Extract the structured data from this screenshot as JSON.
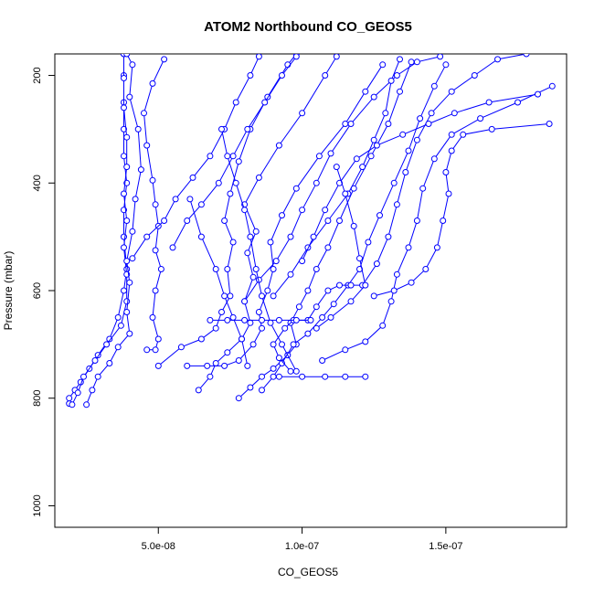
{
  "chart_data": {
    "type": "line",
    "title": "ATOM2 Northbound CO_GEOS5",
    "xlabel": "CO_GEOS5",
    "ylabel": "Pressure (mbar)",
    "xlim": [
      1.4e-08,
      1.92e-07
    ],
    "ylim": [
      1040,
      160
    ],
    "y_inverted": true,
    "grid": false,
    "legend": "none",
    "marker": "open-circle",
    "color": "#0000ff",
    "x_ticks": [
      {
        "value": 5e-08,
        "label": "5.0e-08"
      },
      {
        "value": 1e-07,
        "label": "1.0e-07"
      },
      {
        "value": 1.5e-07,
        "label": "1.5e-07"
      }
    ],
    "y_ticks": [
      {
        "value": 200,
        "label": "200"
      },
      {
        "value": 400,
        "label": "400"
      },
      {
        "value": 600,
        "label": "600"
      },
      {
        "value": 800,
        "label": "800"
      },
      {
        "value": 1000,
        "label": "1000"
      }
    ],
    "series": [
      {
        "values": [
          [
            1.9e-08,
            810
          ],
          [
            1.9e-08,
            800
          ],
          [
            2.1e-08,
            785
          ],
          [
            2.3e-08,
            770
          ],
          [
            2.6e-08,
            745
          ],
          [
            2.9e-08,
            720
          ],
          [
            3.3e-08,
            690
          ],
          [
            3.6e-08,
            650
          ],
          [
            3.8e-08,
            600
          ],
          [
            3.9e-08,
            560
          ],
          [
            3.8e-08,
            500
          ],
          [
            3.8e-08,
            450
          ],
          [
            3.9e-08,
            400
          ],
          [
            3.8e-08,
            350
          ],
          [
            3.8e-08,
            300
          ],
          [
            3.8e-08,
            250
          ],
          [
            3.8e-08,
            200
          ],
          [
            3.8e-08,
            160
          ]
        ]
      },
      {
        "values": [
          [
            2e-08,
            812
          ],
          [
            2.2e-08,
            790
          ],
          [
            2.4e-08,
            760
          ],
          [
            2.8e-08,
            730
          ],
          [
            3.2e-08,
            700
          ],
          [
            3.7e-08,
            665
          ],
          [
            3.9e-08,
            620
          ],
          [
            3.9e-08,
            570
          ],
          [
            3.8e-08,
            520
          ],
          [
            3.9e-08,
            470
          ],
          [
            3.8e-08,
            420
          ],
          [
            3.9e-08,
            370
          ],
          [
            3.9e-08,
            315
          ],
          [
            3.8e-08,
            260
          ],
          [
            3.8e-08,
            205
          ],
          [
            3.8e-08,
            160
          ]
        ]
      },
      {
        "values": [
          [
            2.5e-08,
            812
          ],
          [
            2.7e-08,
            785
          ],
          [
            2.9e-08,
            760
          ],
          [
            3.3e-08,
            735
          ],
          [
            3.6e-08,
            705
          ],
          [
            4e-08,
            680
          ],
          [
            3.9e-08,
            640
          ],
          [
            4e-08,
            585
          ],
          [
            3.9e-08,
            545
          ],
          [
            4.1e-08,
            490
          ],
          [
            4.2e-08,
            430
          ],
          [
            4.4e-08,
            375
          ],
          [
            4.3e-08,
            300
          ],
          [
            4e-08,
            240
          ],
          [
            4.1e-08,
            180
          ],
          [
            3.9e-08,
            160
          ]
        ]
      },
      {
        "values": [
          [
            4.6e-08,
            710
          ],
          [
            4.9e-08,
            710
          ],
          [
            5e-08,
            690
          ],
          [
            4.8e-08,
            650
          ],
          [
            4.9e-08,
            600
          ],
          [
            5.1e-08,
            560
          ],
          [
            4.9e-08,
            525
          ],
          [
            5e-08,
            480
          ],
          [
            4.9e-08,
            440
          ],
          [
            4.8e-08,
            395
          ],
          [
            4.6e-08,
            330
          ],
          [
            4.5e-08,
            270
          ],
          [
            4.8e-08,
            215
          ],
          [
            5.2e-08,
            170
          ]
        ]
      },
      {
        "values": [
          [
            5e-08,
            740
          ],
          [
            5.8e-08,
            705
          ],
          [
            6.5e-08,
            690
          ],
          [
            7e-08,
            670
          ],
          [
            7.2e-08,
            640
          ],
          [
            7.5e-08,
            610
          ],
          [
            7.4e-08,
            560
          ],
          [
            7.6e-08,
            510
          ],
          [
            7.3e-08,
            470
          ],
          [
            7.5e-08,
            420
          ],
          [
            7.8e-08,
            360
          ],
          [
            8.2e-08,
            300
          ],
          [
            8.8e-08,
            240
          ],
          [
            9.5e-08,
            180
          ],
          [
            9.8e-08,
            160
          ]
        ]
      },
      {
        "values": [
          [
            6.4e-08,
            785
          ],
          [
            6.8e-08,
            760
          ],
          [
            7e-08,
            735
          ],
          [
            7.4e-08,
            715
          ],
          [
            7.9e-08,
            690
          ],
          [
            8.2e-08,
            660
          ],
          [
            8e-08,
            620
          ],
          [
            8.3e-08,
            575
          ],
          [
            8.1e-08,
            530
          ],
          [
            8.4e-08,
            490
          ],
          [
            8e-08,
            440
          ],
          [
            8.5e-08,
            390
          ],
          [
            9.2e-08,
            330
          ],
          [
            1e-07,
            270
          ],
          [
            1.08e-07,
            200
          ],
          [
            1.12e-07,
            165
          ]
        ]
      },
      {
        "values": [
          [
            6e-08,
            740
          ],
          [
            6.7e-08,
            740
          ],
          [
            7.3e-08,
            740
          ],
          [
            7.8e-08,
            730
          ],
          [
            8.3e-08,
            700
          ],
          [
            8.6e-08,
            670
          ],
          [
            8.5e-08,
            640
          ],
          [
            8.8e-08,
            600
          ],
          [
            9e-08,
            560
          ],
          [
            8.9e-08,
            510
          ],
          [
            9.3e-08,
            460
          ],
          [
            9.8e-08,
            410
          ],
          [
            1.06e-07,
            350
          ],
          [
            1.15e-07,
            290
          ],
          [
            1.22e-07,
            230
          ],
          [
            1.28e-07,
            180
          ]
        ]
      },
      {
        "values": [
          [
            7.8e-08,
            800
          ],
          [
            8.2e-08,
            780
          ],
          [
            8.6e-08,
            760
          ],
          [
            9e-08,
            745
          ],
          [
            9.5e-08,
            720
          ],
          [
            9.8e-08,
            700
          ],
          [
            9.6e-08,
            660
          ],
          [
            9.9e-08,
            630
          ],
          [
            1.02e-07,
            600
          ],
          [
            1.05e-07,
            560
          ],
          [
            1.09e-07,
            520
          ],
          [
            1.13e-07,
            470
          ],
          [
            1.18e-07,
            410
          ],
          [
            1.24e-07,
            350
          ],
          [
            1.3e-07,
            290
          ],
          [
            1.34e-07,
            230
          ],
          [
            1.38e-07,
            175
          ]
        ]
      },
      {
        "values": [
          [
            8.6e-08,
            785
          ],
          [
            9e-08,
            760
          ],
          [
            9.3e-08,
            735
          ],
          [
            9.7e-08,
            700
          ],
          [
            1.02e-07,
            680
          ],
          [
            1.07e-07,
            650
          ],
          [
            1.11e-07,
            625
          ],
          [
            1.16e-07,
            590
          ],
          [
            1.2e-07,
            560
          ],
          [
            1.23e-07,
            510
          ],
          [
            1.27e-07,
            460
          ],
          [
            1.32e-07,
            400
          ],
          [
            1.37e-07,
            340
          ],
          [
            1.41e-07,
            280
          ],
          [
            1.46e-07,
            220
          ],
          [
            1.5e-07,
            180
          ]
        ]
      },
      {
        "values": [
          [
            9.2e-08,
            760
          ],
          [
            1e-07,
            760
          ],
          [
            1.08e-07,
            760
          ],
          [
            1.15e-07,
            760
          ],
          [
            1.22e-07,
            760
          ]
        ]
      },
      {
        "values": [
          [
            9.6e-08,
            750
          ],
          [
            9.2e-08,
            725
          ],
          [
            9e-08,
            700
          ],
          [
            9.4e-08,
            670
          ],
          [
            9.7e-08,
            655
          ],
          [
            1.02e-07,
            655
          ],
          [
            1.05e-07,
            630
          ],
          [
            1.09e-07,
            600
          ],
          [
            1.13e-07,
            590
          ],
          [
            1.17e-07,
            590
          ],
          [
            1.21e-07,
            590
          ],
          [
            1.26e-07,
            550
          ],
          [
            1.3e-07,
            500
          ],
          [
            1.33e-07,
            440
          ],
          [
            1.36e-07,
            380
          ],
          [
            1.4e-07,
            320
          ],
          [
            1.45e-07,
            270
          ],
          [
            1.52e-07,
            230
          ],
          [
            1.6e-07,
            200
          ],
          [
            1.68e-07,
            170
          ],
          [
            1.78e-07,
            160
          ]
        ]
      },
      {
        "values": [
          [
            1.07e-07,
            730
          ],
          [
            1.15e-07,
            710
          ],
          [
            1.22e-07,
            695
          ],
          [
            1.28e-07,
            665
          ],
          [
            1.31e-07,
            620
          ],
          [
            1.33e-07,
            570
          ],
          [
            1.37e-07,
            520
          ],
          [
            1.4e-07,
            470
          ],
          [
            1.42e-07,
            410
          ],
          [
            1.46e-07,
            355
          ],
          [
            1.52e-07,
            310
          ],
          [
            1.62e-07,
            280
          ],
          [
            1.75e-07,
            250
          ],
          [
            1.87e-07,
            220
          ]
        ]
      },
      {
        "values": [
          [
            1.25e-07,
            610
          ],
          [
            1.32e-07,
            600
          ],
          [
            1.38e-07,
            585
          ],
          [
            1.43e-07,
            560
          ],
          [
            1.47e-07,
            520
          ],
          [
            1.49e-07,
            470
          ],
          [
            1.51e-07,
            420
          ],
          [
            1.5e-07,
            380
          ],
          [
            1.52e-07,
            340
          ],
          [
            1.56e-07,
            310
          ],
          [
            1.66e-07,
            300
          ],
          [
            1.86e-07,
            290
          ]
        ]
      },
      {
        "values": [
          [
            6.8e-08,
            655
          ],
          [
            7.4e-08,
            655
          ],
          [
            8e-08,
            655
          ],
          [
            8.6e-08,
            655
          ],
          [
            9.2e-08,
            655
          ],
          [
            9.8e-08,
            655
          ],
          [
            1.03e-07,
            655
          ]
        ]
      },
      {
        "values": [
          [
            5.5e-08,
            520
          ],
          [
            6e-08,
            470
          ],
          [
            6.5e-08,
            440
          ],
          [
            7.1e-08,
            400
          ],
          [
            7.6e-08,
            350
          ],
          [
            8.1e-08,
            300
          ],
          [
            8.7e-08,
            250
          ],
          [
            9.3e-08,
            200
          ],
          [
            9.8e-08,
            165
          ]
        ]
      },
      {
        "values": [
          [
            4.1e-08,
            540
          ],
          [
            4.6e-08,
            500
          ],
          [
            5.2e-08,
            470
          ],
          [
            5.6e-08,
            430
          ],
          [
            6.2e-08,
            390
          ],
          [
            6.8e-08,
            350
          ],
          [
            7.3e-08,
            300
          ],
          [
            7.7e-08,
            250
          ],
          [
            8.2e-08,
            200
          ],
          [
            8.5e-08,
            165
          ]
        ]
      },
      {
        "values": [
          [
            8e-08,
            620
          ],
          [
            8.5e-08,
            580
          ],
          [
            9.1e-08,
            545
          ],
          [
            9.6e-08,
            500
          ],
          [
            1e-07,
            450
          ],
          [
            1.05e-07,
            400
          ],
          [
            1.1e-07,
            345
          ],
          [
            1.17e-07,
            290
          ],
          [
            1.25e-07,
            240
          ],
          [
            1.33e-07,
            200
          ],
          [
            1.4e-07,
            175
          ],
          [
            1.48e-07,
            165
          ]
        ]
      },
      {
        "values": [
          [
            9e-08,
            610
          ],
          [
            9.6e-08,
            570
          ],
          [
            1.02e-07,
            520
          ],
          [
            1.09e-07,
            470
          ],
          [
            1.16e-07,
            420
          ],
          [
            1.21e-07,
            370
          ],
          [
            1.25e-07,
            320
          ],
          [
            1.29e-07,
            270
          ],
          [
            1.31e-07,
            210
          ],
          [
            1.34e-07,
            170
          ]
        ]
      },
      {
        "values": [
          [
            1e-07,
            545
          ],
          [
            1.04e-07,
            500
          ],
          [
            1.08e-07,
            450
          ],
          [
            1.13e-07,
            400
          ],
          [
            1.19e-07,
            355
          ],
          [
            1.26e-07,
            330
          ],
          [
            1.35e-07,
            310
          ],
          [
            1.44e-07,
            290
          ],
          [
            1.53e-07,
            270
          ],
          [
            1.65e-07,
            250
          ],
          [
            1.82e-07,
            235
          ]
        ]
      },
      {
        "values": [
          [
            6.1e-08,
            430
          ],
          [
            6.5e-08,
            500
          ],
          [
            7e-08,
            560
          ],
          [
            7.3e-08,
            610
          ],
          [
            7.6e-08,
            650
          ],
          [
            7.9e-08,
            690
          ],
          [
            8.1e-08,
            740
          ]
        ]
      },
      {
        "values": [
          [
            7.2e-08,
            300
          ],
          [
            7.4e-08,
            350
          ],
          [
            7.7e-08,
            400
          ],
          [
            8e-08,
            450
          ],
          [
            8.2e-08,
            500
          ],
          [
            8.4e-08,
            560
          ],
          [
            8.6e-08,
            610
          ],
          [
            8.9e-08,
            660
          ],
          [
            9.3e-08,
            700
          ],
          [
            9.8e-08,
            750
          ]
        ]
      },
      {
        "values": [
          [
            1.12e-07,
            370
          ],
          [
            1.15e-07,
            420
          ],
          [
            1.18e-07,
            480
          ],
          [
            1.2e-07,
            540
          ],
          [
            1.22e-07,
            590
          ],
          [
            1.17e-07,
            620
          ],
          [
            1.1e-07,
            650
          ],
          [
            1.05e-07,
            670
          ]
        ]
      }
    ]
  }
}
